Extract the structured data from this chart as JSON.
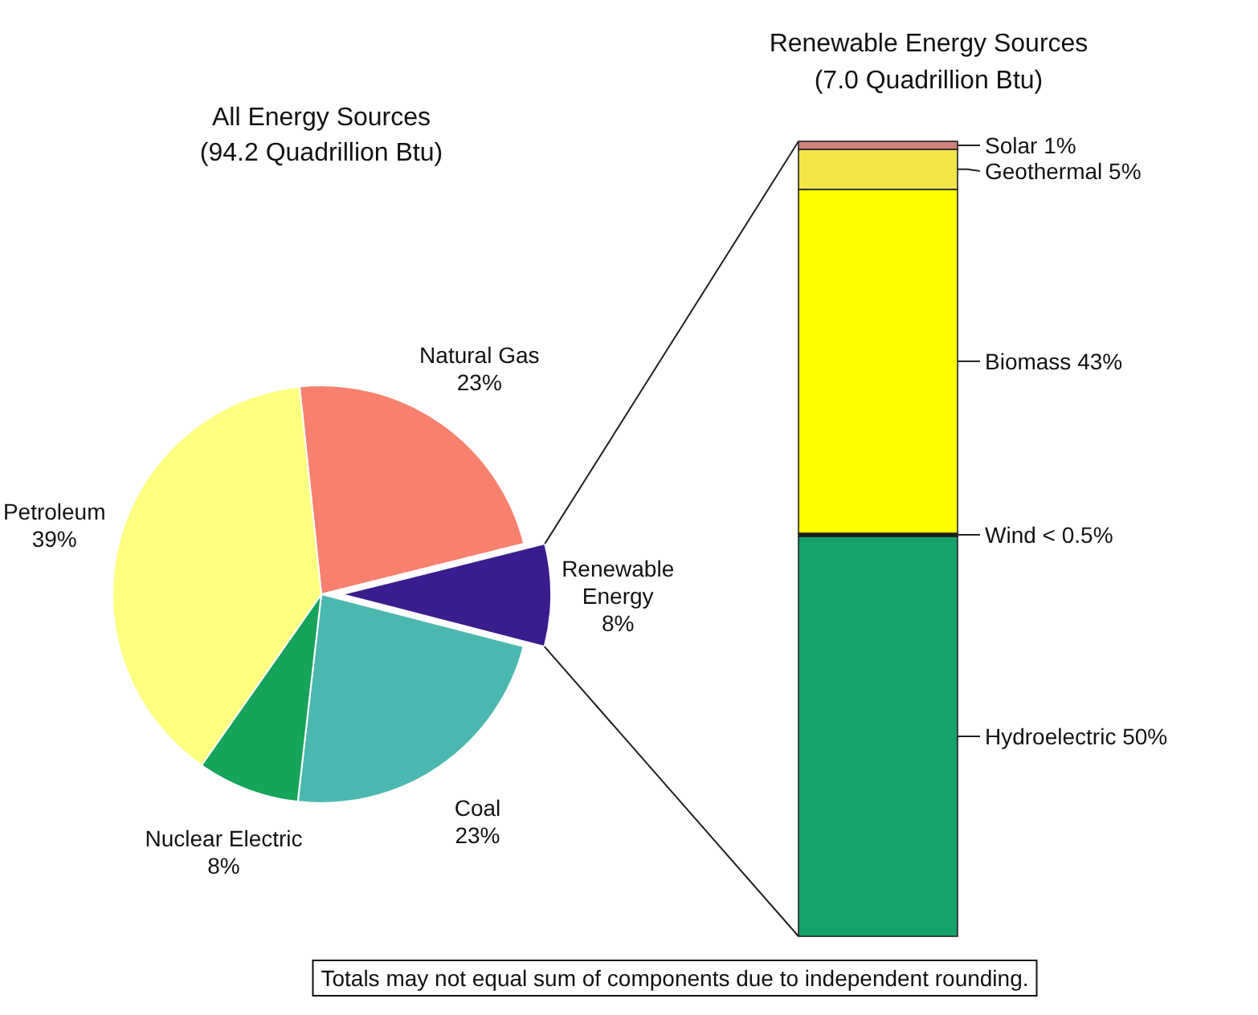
{
  "chart_data": [
    {
      "type": "pie",
      "title": "All Energy Sources",
      "subtitle": "(94.2 Quadrillion Btu)",
      "categories": [
        "Natural Gas",
        "Renewable Energy",
        "Coal",
        "Nuclear Electric",
        "Petroleum"
      ],
      "values": [
        23,
        8,
        23,
        8,
        39
      ],
      "value_labels": [
        "23%",
        "8%",
        "23%",
        "8%",
        "39%"
      ],
      "colors": [
        "#f8806f",
        "#3a1d8c",
        "#4bb8b0",
        "#16a35a",
        "#ffff80"
      ],
      "annotations": [
        "Totals may not equal sum of components due to independent rounding."
      ]
    },
    {
      "type": "bar",
      "stacked": true,
      "title": "Renewable Energy Sources",
      "subtitle": "(7.0 Quadrillion Btu)",
      "categories": [
        null
      ],
      "series": [
        {
          "color": "#16a36a",
          "values": [
            50
          ],
          "value_labels": [
            "Hydroelectric 50%"
          ]
        },
        {
          "color": "#1a1a1a",
          "values": [
            0.4
          ],
          "value_labels": [
            "Wind < 0.5%"
          ]
        },
        {
          "color": "#ffff00",
          "values": [
            43
          ],
          "value_labels": [
            "Biomass 43%"
          ]
        },
        {
          "color": "#f2e64a",
          "values": [
            5
          ],
          "value_labels": [
            "Geothermal 5%"
          ]
        },
        {
          "color": "#d08080",
          "values": [
            1
          ],
          "value_labels": [
            "Solar 1%"
          ]
        }
      ]
    }
  ]
}
